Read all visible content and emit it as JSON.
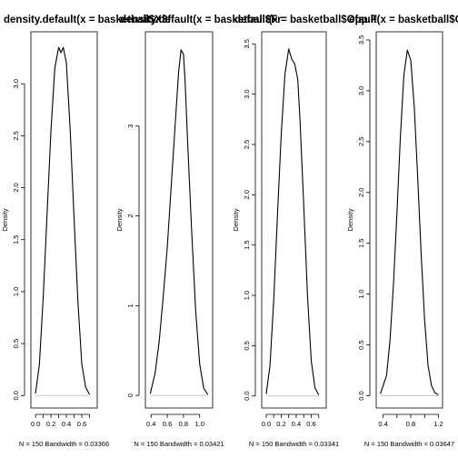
{
  "chart_data": [
    {
      "type": "line",
      "title": "density.default(x = basketball$X3f",
      "xlabel": "N = 150   Bandwidth = 0.03366",
      "ylabel": "Density",
      "xlim": [
        -0.06,
        0.8
      ],
      "ylim": [
        -0.12,
        3.5
      ],
      "xticks": [
        0.0,
        0.1,
        0.2,
        0.3,
        0.4,
        0.5,
        0.6,
        0.7
      ],
      "xtick_labels": [
        "0.0",
        "",
        "0.2",
        "",
        "0.4",
        "",
        "0.6",
        ""
      ],
      "yticks": [
        0.0,
        0.5,
        1.0,
        1.5,
        2.0,
        2.5,
        3.0
      ],
      "ytick_labels": [
        "0.0",
        "0.5",
        "1.0",
        "1.5",
        "2.0",
        "2.5",
        "3.0"
      ],
      "x": [
        0.0,
        0.05,
        0.1,
        0.15,
        0.2,
        0.25,
        0.3,
        0.33,
        0.36,
        0.4,
        0.45,
        0.5,
        0.55,
        0.6,
        0.65,
        0.7
      ],
      "y": [
        0.02,
        0.3,
        0.95,
        1.75,
        2.55,
        3.15,
        3.35,
        3.3,
        3.35,
        3.2,
        2.55,
        1.7,
        0.9,
        0.3,
        0.08,
        0.01
      ]
    },
    {
      "type": "line",
      "title": "density.default(x = basketball$Fr",
      "xlabel": "N = 150   Bandwidth = 0.03421",
      "ylabel": "Density",
      "xlim": [
        0.33,
        1.16
      ],
      "ylim": [
        -0.14,
        4.05
      ],
      "xticks": [
        0.4,
        0.6,
        0.8,
        1.0
      ],
      "xtick_labels": [
        "0.4",
        "0.6",
        "0.8",
        "1.0"
      ],
      "yticks": [
        0,
        1,
        2,
        3
      ],
      "ytick_labels": [
        "0",
        "1",
        "2",
        "3"
      ],
      "x": [
        0.39,
        0.45,
        0.5,
        0.55,
        0.6,
        0.65,
        0.7,
        0.74,
        0.77,
        0.8,
        0.82,
        0.85,
        0.9,
        0.95,
        1.0,
        1.05,
        1.1
      ],
      "y": [
        0.02,
        0.25,
        0.6,
        1.1,
        1.65,
        2.35,
        3.05,
        3.6,
        3.85,
        3.8,
        3.5,
        2.85,
        1.85,
        0.95,
        0.35,
        0.08,
        0.01
      ]
    },
    {
      "type": "line",
      "title": "default(x = basketball$Opp.F",
      "xlabel": "N = 150   Bandwidth = 0.03341",
      "ylabel": "Density",
      "xlim": [
        -0.06,
        0.8
      ],
      "ylim": [
        -0.12,
        3.62
      ],
      "xticks": [
        0.0,
        0.1,
        0.2,
        0.3,
        0.4,
        0.5,
        0.6,
        0.7
      ],
      "xtick_labels": [
        "0.0",
        "",
        "0.2",
        "",
        "0.4",
        "",
        "0.6",
        ""
      ],
      "yticks": [
        0.0,
        0.5,
        1.0,
        1.5,
        2.0,
        2.5,
        3.0,
        3.5
      ],
      "ytick_labels": [
        "0.0",
        "0.5",
        "1.0",
        "1.5",
        "2.0",
        "2.5",
        "3.0",
        "3.5"
      ],
      "x": [
        0.0,
        0.05,
        0.1,
        0.15,
        0.2,
        0.25,
        0.3,
        0.34,
        0.38,
        0.42,
        0.45,
        0.5,
        0.55,
        0.6,
        0.65,
        0.7
      ],
      "y": [
        0.02,
        0.3,
        0.95,
        1.8,
        2.6,
        3.2,
        3.45,
        3.35,
        3.3,
        3.15,
        2.75,
        1.9,
        1.0,
        0.35,
        0.08,
        0.01
      ]
    },
    {
      "type": "line",
      "title": "efault(x = basketball$Opp.",
      "xlabel": "N = 150   Bandwidth = 0.03647",
      "ylabel": "Density",
      "xlim": [
        0.3,
        1.26
      ],
      "ylim": [
        -0.12,
        3.58
      ],
      "xticks": [
        0.4,
        0.6,
        0.8,
        1.0,
        1.2
      ],
      "xtick_labels": [
        "0.4",
        "",
        "0.8",
        "",
        "1.2"
      ],
      "yticks": [
        0.0,
        0.5,
        1.0,
        1.5,
        2.0,
        2.5,
        3.0,
        3.5
      ],
      "ytick_labels": [
        "0.0",
        "0.5",
        "1.0",
        "1.5",
        "2.0",
        "2.5",
        "3.0",
        "3.5"
      ],
      "x": [
        0.36,
        0.45,
        0.5,
        0.55,
        0.6,
        0.65,
        0.7,
        0.75,
        0.8,
        0.85,
        0.9,
        0.95,
        1.0,
        1.05,
        1.1,
        1.15,
        1.2
      ],
      "y": [
        0.02,
        0.2,
        0.55,
        1.1,
        1.8,
        2.55,
        3.15,
        3.4,
        3.3,
        2.85,
        2.15,
        1.4,
        0.75,
        0.3,
        0.1,
        0.03,
        0.01
      ]
    }
  ]
}
